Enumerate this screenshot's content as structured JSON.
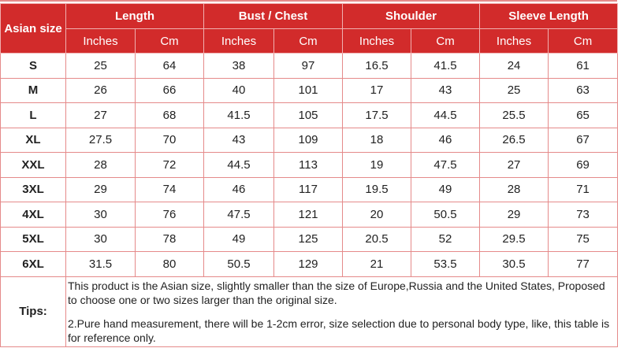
{
  "header": {
    "size_label": "Asian size",
    "groups": [
      "Length",
      "Bust / Chest",
      "Shoulder",
      "Sleeve Length"
    ],
    "units": [
      "Inches",
      "Cm"
    ]
  },
  "rows": [
    {
      "size": "S",
      "values": [
        "25",
        "64",
        "38",
        "97",
        "16.5",
        "41.5",
        "24",
        "61"
      ]
    },
    {
      "size": "M",
      "values": [
        "26",
        "66",
        "40",
        "101",
        "17",
        "43",
        "25",
        "63"
      ]
    },
    {
      "size": "L",
      "values": [
        "27",
        "68",
        "41.5",
        "105",
        "17.5",
        "44.5",
        "25.5",
        "65"
      ]
    },
    {
      "size": "XL",
      "values": [
        "27.5",
        "70",
        "43",
        "109",
        "18",
        "46",
        "26.5",
        "67"
      ]
    },
    {
      "size": "XXL",
      "values": [
        "28",
        "72",
        "44.5",
        "113",
        "19",
        "47.5",
        "27",
        "69"
      ]
    },
    {
      "size": "3XL",
      "values": [
        "29",
        "74",
        "46",
        "117",
        "19.5",
        "49",
        "28",
        "71"
      ]
    },
    {
      "size": "4XL",
      "values": [
        "30",
        "76",
        "47.5",
        "121",
        "20",
        "50.5",
        "29",
        "73"
      ]
    },
    {
      "size": "5XL",
      "values": [
        "30",
        "78",
        "49",
        "125",
        "20.5",
        "52",
        "29.5",
        "75"
      ]
    },
    {
      "size": "6XL",
      "values": [
        "31.5",
        "80",
        "50.5",
        "129",
        "21",
        "53.5",
        "30.5",
        "77"
      ]
    }
  ],
  "tips": {
    "label": "Tips:",
    "line1": "This product is the Asian size, slightly smaller than the size of Europe,Russia and the United States, Proposed to choose one or two sizes larger than the original size.",
    "line2": "2.Pure hand measurement, there will be 1-2cm error, size selection due to personal body type, like, this table is for reference only."
  },
  "colors": {
    "header_bg": "#d22b2b",
    "border": "#e58a8a"
  }
}
